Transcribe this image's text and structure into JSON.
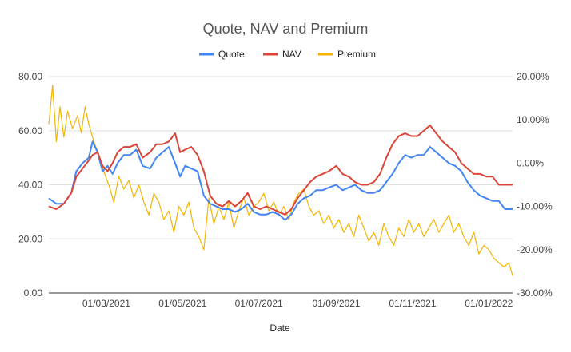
{
  "chart_data": {
    "type": "line",
    "title": "Quote, NAV and Premium",
    "xlabel": "Date",
    "x_range": [
      "2021-01-14",
      "2022-01-20"
    ],
    "x_ticks": [
      {
        "date": "2021-03-01",
        "label": "01/03/2021"
      },
      {
        "date": "2021-05-01",
        "label": "01/05/2021"
      },
      {
        "date": "2021-07-01",
        "label": "01/07/2021"
      },
      {
        "date": "2021-09-01",
        "label": "01/09/2021"
      },
      {
        "date": "2021-11-01",
        "label": "01/11/2021"
      },
      {
        "date": "2022-01-01",
        "label": "01/01/2022"
      }
    ],
    "y_left": {
      "range": [
        0,
        80
      ],
      "ticks": [
        "0.00",
        "20.00",
        "40.00",
        "60.00",
        "80.00"
      ]
    },
    "y_right": {
      "range": [
        -30,
        20
      ],
      "ticks": [
        "-30.00%",
        "-20.00%",
        "-10.00%",
        "0.00%",
        "10.00%",
        "20.00%"
      ]
    },
    "grid": true,
    "legend": "top",
    "series": [
      {
        "name": "Quote",
        "axis": "left",
        "color": "#4285f4",
        "points": [
          [
            "2021-01-14",
            35
          ],
          [
            "2021-01-20",
            33
          ],
          [
            "2021-01-26",
            33
          ],
          [
            "2021-02-01",
            37
          ],
          [
            "2021-02-05",
            45
          ],
          [
            "2021-02-10",
            48
          ],
          [
            "2021-02-15",
            50
          ],
          [
            "2021-02-18",
            56
          ],
          [
            "2021-02-22",
            52
          ],
          [
            "2021-02-26",
            45
          ],
          [
            "2021-03-02",
            47
          ],
          [
            "2021-03-06",
            44
          ],
          [
            "2021-03-10",
            48
          ],
          [
            "2021-03-15",
            51
          ],
          [
            "2021-03-20",
            51
          ],
          [
            "2021-03-25",
            53
          ],
          [
            "2021-03-30",
            47
          ],
          [
            "2021-04-05",
            46
          ],
          [
            "2021-04-10",
            50
          ],
          [
            "2021-04-15",
            52
          ],
          [
            "2021-04-20",
            54
          ],
          [
            "2021-04-25",
            48
          ],
          [
            "2021-04-29",
            43
          ],
          [
            "2021-05-03",
            47
          ],
          [
            "2021-05-08",
            46
          ],
          [
            "2021-05-13",
            45
          ],
          [
            "2021-05-18",
            36
          ],
          [
            "2021-05-23",
            33
          ],
          [
            "2021-05-28",
            32
          ],
          [
            "2021-06-02",
            31
          ],
          [
            "2021-06-07",
            31
          ],
          [
            "2021-06-12",
            30
          ],
          [
            "2021-06-17",
            31
          ],
          [
            "2021-06-22",
            33
          ],
          [
            "2021-06-27",
            30
          ],
          [
            "2021-07-02",
            29
          ],
          [
            "2021-07-07",
            29
          ],
          [
            "2021-07-12",
            30
          ],
          [
            "2021-07-17",
            29
          ],
          [
            "2021-07-22",
            27
          ],
          [
            "2021-07-27",
            29
          ],
          [
            "2021-08-01",
            33
          ],
          [
            "2021-08-06",
            35
          ],
          [
            "2021-08-11",
            36
          ],
          [
            "2021-08-16",
            38
          ],
          [
            "2021-08-21",
            38
          ],
          [
            "2021-08-26",
            39
          ],
          [
            "2021-09-01",
            40
          ],
          [
            "2021-09-06",
            38
          ],
          [
            "2021-09-11",
            39
          ],
          [
            "2021-09-16",
            40
          ],
          [
            "2021-09-21",
            38
          ],
          [
            "2021-09-26",
            37
          ],
          [
            "2021-10-01",
            37
          ],
          [
            "2021-10-06",
            38
          ],
          [
            "2021-10-11",
            41
          ],
          [
            "2021-10-16",
            44
          ],
          [
            "2021-10-21",
            48
          ],
          [
            "2021-10-26",
            51
          ],
          [
            "2021-10-31",
            50
          ],
          [
            "2021-11-05",
            51
          ],
          [
            "2021-11-10",
            51
          ],
          [
            "2021-11-15",
            54
          ],
          [
            "2021-11-20",
            52
          ],
          [
            "2021-11-25",
            50
          ],
          [
            "2021-11-30",
            48
          ],
          [
            "2021-12-05",
            47
          ],
          [
            "2021-12-10",
            45
          ],
          [
            "2021-12-15",
            41
          ],
          [
            "2021-12-20",
            38
          ],
          [
            "2021-12-25",
            36
          ],
          [
            "2021-12-30",
            35
          ],
          [
            "2022-01-04",
            34
          ],
          [
            "2022-01-09",
            34
          ],
          [
            "2022-01-14",
            31
          ],
          [
            "2022-01-20",
            31
          ]
        ]
      },
      {
        "name": "NAV",
        "axis": "left",
        "color": "#db4437",
        "points": [
          [
            "2021-01-14",
            32
          ],
          [
            "2021-01-20",
            31
          ],
          [
            "2021-01-26",
            33
          ],
          [
            "2021-02-01",
            37
          ],
          [
            "2021-02-05",
            43
          ],
          [
            "2021-02-10",
            46
          ],
          [
            "2021-02-15",
            49
          ],
          [
            "2021-02-18",
            51
          ],
          [
            "2021-02-22",
            52
          ],
          [
            "2021-02-26",
            47
          ],
          [
            "2021-03-02",
            45
          ],
          [
            "2021-03-06",
            48
          ],
          [
            "2021-03-10",
            52
          ],
          [
            "2021-03-15",
            54
          ],
          [
            "2021-03-20",
            54
          ],
          [
            "2021-03-25",
            55
          ],
          [
            "2021-03-30",
            50
          ],
          [
            "2021-04-05",
            52
          ],
          [
            "2021-04-10",
            55
          ],
          [
            "2021-04-15",
            55
          ],
          [
            "2021-04-20",
            56
          ],
          [
            "2021-04-25",
            59
          ],
          [
            "2021-04-29",
            52
          ],
          [
            "2021-05-03",
            53
          ],
          [
            "2021-05-08",
            54
          ],
          [
            "2021-05-13",
            51
          ],
          [
            "2021-05-18",
            45
          ],
          [
            "2021-05-23",
            36
          ],
          [
            "2021-05-28",
            33
          ],
          [
            "2021-06-02",
            32
          ],
          [
            "2021-06-07",
            34
          ],
          [
            "2021-06-12",
            32
          ],
          [
            "2021-06-17",
            34
          ],
          [
            "2021-06-22",
            37
          ],
          [
            "2021-06-27",
            32
          ],
          [
            "2021-07-02",
            31
          ],
          [
            "2021-07-07",
            32
          ],
          [
            "2021-07-12",
            31
          ],
          [
            "2021-07-17",
            30
          ],
          [
            "2021-07-22",
            29
          ],
          [
            "2021-07-27",
            31
          ],
          [
            "2021-08-01",
            35
          ],
          [
            "2021-08-06",
            38
          ],
          [
            "2021-08-11",
            41
          ],
          [
            "2021-08-16",
            43
          ],
          [
            "2021-08-21",
            44
          ],
          [
            "2021-08-26",
            45
          ],
          [
            "2021-09-01",
            47
          ],
          [
            "2021-09-06",
            44
          ],
          [
            "2021-09-11",
            43
          ],
          [
            "2021-09-16",
            41
          ],
          [
            "2021-09-21",
            40
          ],
          [
            "2021-09-26",
            40
          ],
          [
            "2021-10-01",
            41
          ],
          [
            "2021-10-06",
            44
          ],
          [
            "2021-10-11",
            50
          ],
          [
            "2021-10-16",
            55
          ],
          [
            "2021-10-21",
            58
          ],
          [
            "2021-10-26",
            59
          ],
          [
            "2021-10-31",
            58
          ],
          [
            "2021-11-05",
            58
          ],
          [
            "2021-11-10",
            60
          ],
          [
            "2021-11-15",
            62
          ],
          [
            "2021-11-20",
            59
          ],
          [
            "2021-11-25",
            56
          ],
          [
            "2021-11-30",
            54
          ],
          [
            "2021-12-05",
            52
          ],
          [
            "2021-12-10",
            48
          ],
          [
            "2021-12-15",
            46
          ],
          [
            "2021-12-20",
            44
          ],
          [
            "2021-12-25",
            44
          ],
          [
            "2021-12-30",
            43
          ],
          [
            "2022-01-04",
            43
          ],
          [
            "2022-01-09",
            40
          ],
          [
            "2022-01-14",
            40
          ],
          [
            "2022-01-20",
            40
          ]
        ]
      },
      {
        "name": "Premium",
        "axis": "right",
        "color": "#f4b400",
        "points": [
          [
            "2021-01-14",
            9
          ],
          [
            "2021-01-17",
            18
          ],
          [
            "2021-01-20",
            5
          ],
          [
            "2021-01-23",
            13
          ],
          [
            "2021-01-26",
            6
          ],
          [
            "2021-01-29",
            12
          ],
          [
            "2021-02-02",
            8
          ],
          [
            "2021-02-06",
            11
          ],
          [
            "2021-02-09",
            7
          ],
          [
            "2021-02-12",
            13
          ],
          [
            "2021-02-15",
            9
          ],
          [
            "2021-02-19",
            5
          ],
          [
            "2021-02-23",
            2
          ],
          [
            "2021-02-27",
            -2
          ],
          [
            "2021-03-03",
            -5
          ],
          [
            "2021-03-07",
            -9
          ],
          [
            "2021-03-11",
            -3
          ],
          [
            "2021-03-15",
            -6
          ],
          [
            "2021-03-19",
            -4
          ],
          [
            "2021-03-23",
            -8
          ],
          [
            "2021-03-27",
            -5
          ],
          [
            "2021-03-31",
            -9
          ],
          [
            "2021-04-04",
            -12
          ],
          [
            "2021-04-08",
            -7
          ],
          [
            "2021-04-12",
            -9
          ],
          [
            "2021-04-16",
            -13
          ],
          [
            "2021-04-20",
            -11
          ],
          [
            "2021-04-24",
            -16
          ],
          [
            "2021-04-28",
            -10
          ],
          [
            "2021-05-02",
            -12
          ],
          [
            "2021-05-06",
            -9
          ],
          [
            "2021-05-10",
            -15
          ],
          [
            "2021-05-14",
            -17
          ],
          [
            "2021-05-18",
            -20
          ],
          [
            "2021-05-22",
            -8
          ],
          [
            "2021-05-26",
            -14
          ],
          [
            "2021-05-30",
            -10
          ],
          [
            "2021-06-03",
            -13
          ],
          [
            "2021-06-07",
            -9
          ],
          [
            "2021-06-11",
            -15
          ],
          [
            "2021-06-15",
            -11
          ],
          [
            "2021-06-19",
            -8
          ],
          [
            "2021-06-23",
            -12
          ],
          [
            "2021-06-27",
            -10
          ],
          [
            "2021-07-01",
            -9
          ],
          [
            "2021-07-05",
            -7
          ],
          [
            "2021-07-09",
            -11
          ],
          [
            "2021-07-13",
            -9
          ],
          [
            "2021-07-17",
            -12
          ],
          [
            "2021-07-21",
            -10
          ],
          [
            "2021-07-25",
            -13
          ],
          [
            "2021-07-29",
            -9
          ],
          [
            "2021-08-02",
            -7
          ],
          [
            "2021-08-06",
            -6
          ],
          [
            "2021-08-10",
            -10
          ],
          [
            "2021-08-14",
            -12
          ],
          [
            "2021-08-18",
            -11
          ],
          [
            "2021-08-22",
            -14
          ],
          [
            "2021-08-26",
            -12
          ],
          [
            "2021-08-30",
            -15
          ],
          [
            "2021-09-03",
            -13
          ],
          [
            "2021-09-07",
            -16
          ],
          [
            "2021-09-11",
            -14
          ],
          [
            "2021-09-15",
            -17
          ],
          [
            "2021-09-19",
            -12
          ],
          [
            "2021-09-23",
            -15
          ],
          [
            "2021-09-27",
            -18
          ],
          [
            "2021-10-01",
            -16
          ],
          [
            "2021-10-05",
            -19
          ],
          [
            "2021-10-09",
            -14
          ],
          [
            "2021-10-13",
            -17
          ],
          [
            "2021-10-17",
            -19
          ],
          [
            "2021-10-21",
            -15
          ],
          [
            "2021-10-25",
            -17
          ],
          [
            "2021-10-29",
            -13
          ],
          [
            "2021-11-02",
            -16
          ],
          [
            "2021-11-06",
            -14
          ],
          [
            "2021-11-10",
            -17
          ],
          [
            "2021-11-14",
            -15
          ],
          [
            "2021-11-18",
            -13
          ],
          [
            "2021-11-22",
            -16
          ],
          [
            "2021-11-26",
            -14
          ],
          [
            "2021-11-30",
            -12
          ],
          [
            "2021-12-04",
            -16
          ],
          [
            "2021-12-08",
            -14
          ],
          [
            "2021-12-12",
            -17
          ],
          [
            "2021-12-16",
            -19
          ],
          [
            "2021-12-20",
            -16
          ],
          [
            "2021-12-24",
            -21
          ],
          [
            "2021-12-28",
            -19
          ],
          [
            "2022-01-01",
            -20
          ],
          [
            "2022-01-05",
            -22
          ],
          [
            "2022-01-09",
            -23
          ],
          [
            "2022-01-13",
            -24
          ],
          [
            "2022-01-17",
            -23
          ],
          [
            "2022-01-20",
            -26
          ]
        ]
      }
    ]
  }
}
